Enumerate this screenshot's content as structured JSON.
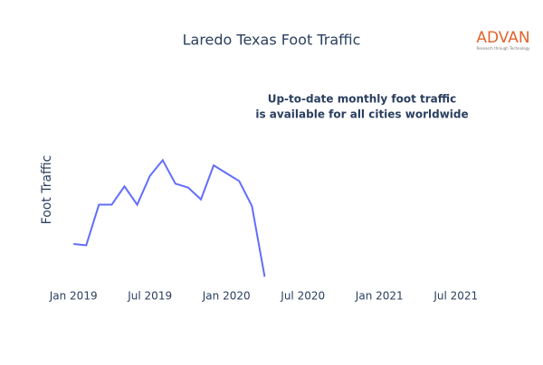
{
  "chart_data": {
    "type": "line",
    "title": "Laredo Texas Foot Traffic",
    "y_label": "Foot Traffic",
    "annotation": [
      "Up-to-date monthly foot traffic",
      "is available for all cities worldwide"
    ],
    "logo": {
      "name": "ADVAN",
      "tagline": "Research through Technology"
    },
    "x": [
      "2019-01",
      "2019-02",
      "2019-03",
      "2019-04",
      "2019-05",
      "2019-06",
      "2019-07",
      "2019-08",
      "2019-09",
      "2019-10",
      "2019-11",
      "2019-12",
      "2020-01",
      "2020-02",
      "2020-03",
      "2020-04"
    ],
    "series": [
      {
        "name": "Foot Traffic",
        "color": "#636efa",
        "values": [
          31,
          30,
          61,
          61,
          75,
          61,
          83,
          95,
          77,
          74,
          65,
          91,
          85,
          79,
          60,
          6
        ]
      }
    ],
    "xlim": [
      "2018-11",
      "2021-10"
    ],
    "xticks": [
      {
        "value": "2019-01",
        "label": "Jan 2019"
      },
      {
        "value": "2019-07",
        "label": "Jul 2019"
      },
      {
        "value": "2020-01",
        "label": "Jan 2020"
      },
      {
        "value": "2020-07",
        "label": "Jul 2020"
      },
      {
        "value": "2021-01",
        "label": "Jan 2021"
      },
      {
        "value": "2021-07",
        "label": "Jul 2021"
      }
    ],
    "ylim": [
      0,
      100
    ]
  }
}
